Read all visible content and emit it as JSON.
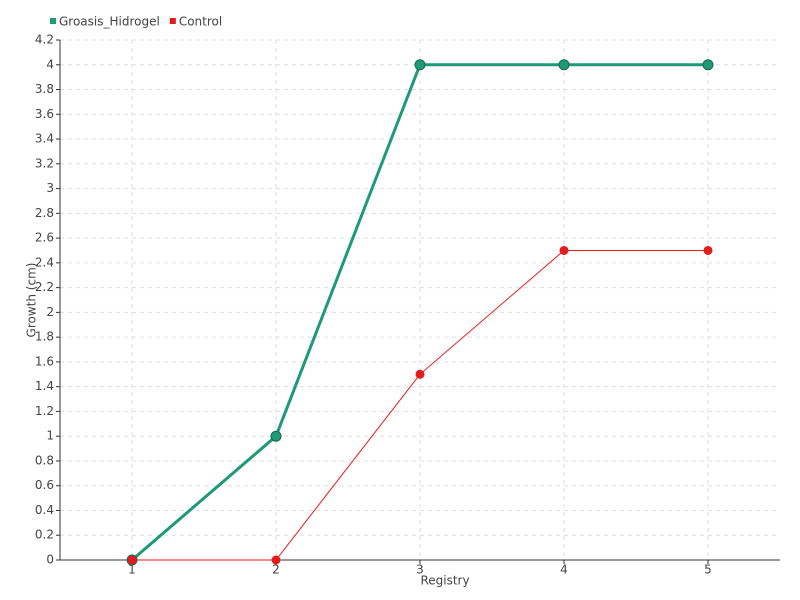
{
  "chart_data": {
    "type": "line",
    "x_label": "Registry",
    "y_label": "Growth (cm)",
    "x": [
      1,
      2,
      3,
      4,
      5
    ],
    "xlim": [
      0.5,
      5.5
    ],
    "xticks": [
      1,
      2,
      3,
      4,
      5
    ],
    "ylim": [
      0,
      4.2
    ],
    "yticks": [
      0,
      0.2,
      0.4,
      0.6,
      0.8,
      1,
      1.2,
      1.4,
      1.6,
      1.8,
      2,
      2.2,
      2.4,
      2.6,
      2.8,
      3,
      3.2,
      3.4,
      3.6,
      3.8,
      4,
      4.2
    ],
    "grid": true,
    "legend": "top-left",
    "series": [
      {
        "name": "Groasis_Hidrogel",
        "color": "#1f9a78",
        "values": [
          0,
          1,
          4,
          4,
          4
        ]
      },
      {
        "name": "Control",
        "color": "#e41a1c",
        "values": [
          0,
          0,
          1.5,
          2.5,
          2.5
        ]
      }
    ]
  }
}
